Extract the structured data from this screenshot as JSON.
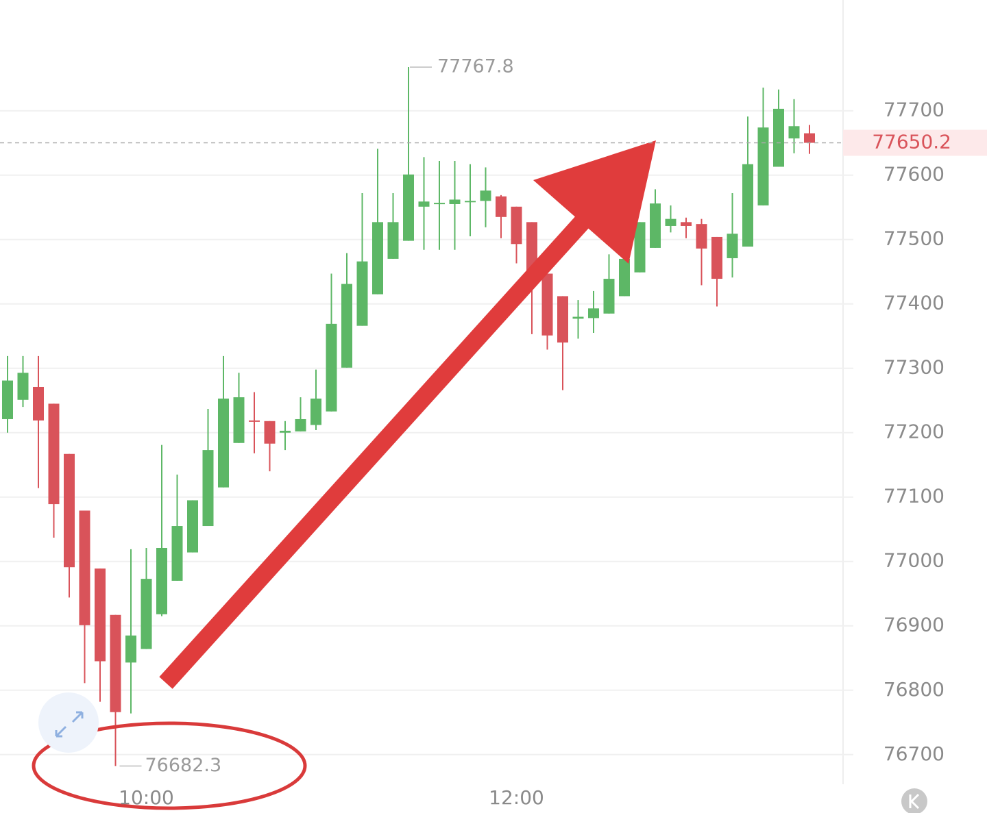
{
  "chart_data": {
    "type": "candlestick",
    "categories": [
      null,
      null,
      null,
      null,
      null,
      null,
      null,
      null,
      null,
      "10:00",
      null,
      null,
      null,
      null,
      null,
      null,
      null,
      null,
      null,
      null,
      null,
      null,
      null,
      null,
      null,
      null,
      null,
      null,
      null,
      null,
      null,
      null,
      null,
      "12:00",
      null,
      null,
      null,
      null,
      null,
      null,
      null,
      null,
      null,
      null,
      null,
      null,
      null,
      null,
      null,
      null,
      null,
      null,
      null
    ],
    "series": [
      {
        "up_color": "#5db766",
        "down_color": "#d9535a",
        "open": [
          77221,
          77251,
          77271,
          77245,
          77167,
          77079,
          76989,
          76917,
          76843,
          76864,
          76918,
          76970,
          77014,
          77055,
          77115,
          77184,
          77219,
          77218,
          77200,
          77202,
          77212,
          77233,
          77301,
          77366,
          77415,
          77470,
          77498,
          77551,
          77555,
          77555,
          77558,
          77560,
          77567,
          77551,
          77527,
          77447,
          77412,
          77377,
          77378,
          77385,
          77412,
          77449,
          77487,
          77521,
          77527,
          77524,
          77504,
          77471,
          77489,
          77553,
          77613,
          77657,
          77665
        ],
        "high": [
          77319,
          77319,
          77319,
          77245,
          77167,
          77079,
          76989,
          76917,
          77019,
          77021,
          77181,
          77135,
          77095,
          77237,
          77319,
          77293,
          77263,
          77218,
          77218,
          77255,
          77298,
          77447,
          77479,
          77572,
          77641,
          77572,
          77767.8,
          77628,
          77622,
          77622,
          77617,
          77612,
          77569,
          77551,
          77527,
          77447,
          77412,
          77406,
          77420,
          77477,
          77500,
          77527,
          77578,
          77553,
          77534,
          77532,
          77504,
          77572,
          77691,
          77736,
          77733,
          77718,
          77678
        ],
        "low": [
          77200,
          77240,
          77114,
          77037,
          76944,
          76811,
          76782,
          76682.3,
          76764,
          76864,
          76915,
          76970,
          77014,
          77055,
          77115,
          77184,
          77168,
          77140,
          77173,
          77202,
          77204,
          77233,
          77301,
          77366,
          77415,
          77470,
          77498,
          77484,
          77484,
          77484,
          77505,
          77519,
          77502,
          77463,
          77353,
          77329,
          77266,
          77346,
          77355,
          77385,
          77412,
          77449,
          77487,
          77511,
          77502,
          77429,
          77396,
          77441,
          77489,
          77553,
          77613,
          77634,
          77633
        ],
        "close": [
          77281,
          77293,
          77219,
          77089,
          76991,
          76901,
          76845,
          76766,
          76885,
          76973,
          77021,
          77055,
          77095,
          77173,
          77253,
          77255,
          77217,
          77183,
          77203,
          77221,
          77253,
          77369,
          77431,
          77466,
          77527,
          77527,
          77601,
          77559,
          77557,
          77562,
          77560,
          77576,
          77535,
          77493,
          77447,
          77351,
          77340,
          77380,
          77393,
          77439,
          77470,
          77527,
          77556,
          77532,
          77521,
          77486,
          77439,
          77509,
          77617,
          77674,
          77703,
          77676,
          77650.2
        ]
      }
    ],
    "ylim": [
      76654,
      77872
    ],
    "yticks": [
      76700,
      76800,
      76900,
      77000,
      77100,
      77200,
      77300,
      77400,
      77500,
      77600,
      77700
    ],
    "grid": true
  }
}
